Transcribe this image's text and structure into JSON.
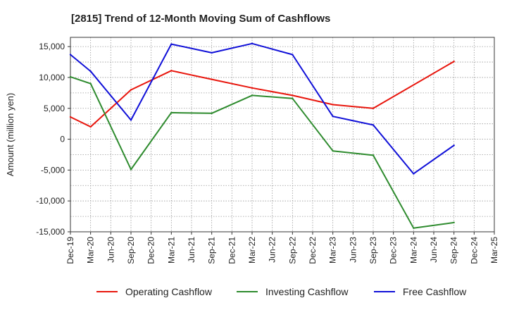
{
  "chart_data": {
    "type": "line",
    "title": "[2815]  Trend of 12-Month Moving Sum of Cashflows",
    "ylabel": "Amount (million yen)",
    "xlabel": "",
    "ylim": [
      -15000,
      16500
    ],
    "yticks": [
      15000,
      10000,
      5000,
      0,
      -5000,
      -10000,
      -15000
    ],
    "ytick_labels": [
      "15,000",
      "10,000",
      "5,000",
      "0",
      "-5,000",
      "-10,000",
      "-15,000"
    ],
    "categories": [
      "Dec-19",
      "Mar-20",
      "Jun-20",
      "Sep-20",
      "Dec-20",
      "Mar-21",
      "Jun-21",
      "Sep-21",
      "Dec-21",
      "Mar-22",
      "Jun-22",
      "Sep-22",
      "Dec-22",
      "Mar-23",
      "Jun-23",
      "Sep-23",
      "Dec-23",
      "Mar-24",
      "Jun-24",
      "Sep-24",
      "Dec-24",
      "Mar-25"
    ],
    "grid": true,
    "legend_position": "bottom",
    "series": [
      {
        "name": "Operating Cashflow",
        "color": "#e8160d",
        "values": [
          3600,
          2000,
          null,
          8000,
          null,
          11100,
          null,
          9700,
          null,
          8300,
          null,
          7100,
          null,
          5600,
          null,
          5000,
          null,
          null,
          null,
          12600,
          null,
          null
        ]
      },
      {
        "name": "Investing Cashflow",
        "color": "#2e8b2e",
        "values": [
          10100,
          9000,
          null,
          -4900,
          null,
          4300,
          null,
          4200,
          null,
          7100,
          null,
          6600,
          null,
          -1900,
          null,
          -2600,
          null,
          -14400,
          null,
          -13500,
          null,
          null
        ]
      },
      {
        "name": "Free Cashflow",
        "color": "#1010d8",
        "values": [
          13700,
          11000,
          null,
          3100,
          null,
          15400,
          null,
          14000,
          null,
          15500,
          null,
          13700,
          null,
          3700,
          null,
          2300,
          null,
          -5600,
          null,
          -1000,
          null,
          null
        ]
      }
    ]
  }
}
